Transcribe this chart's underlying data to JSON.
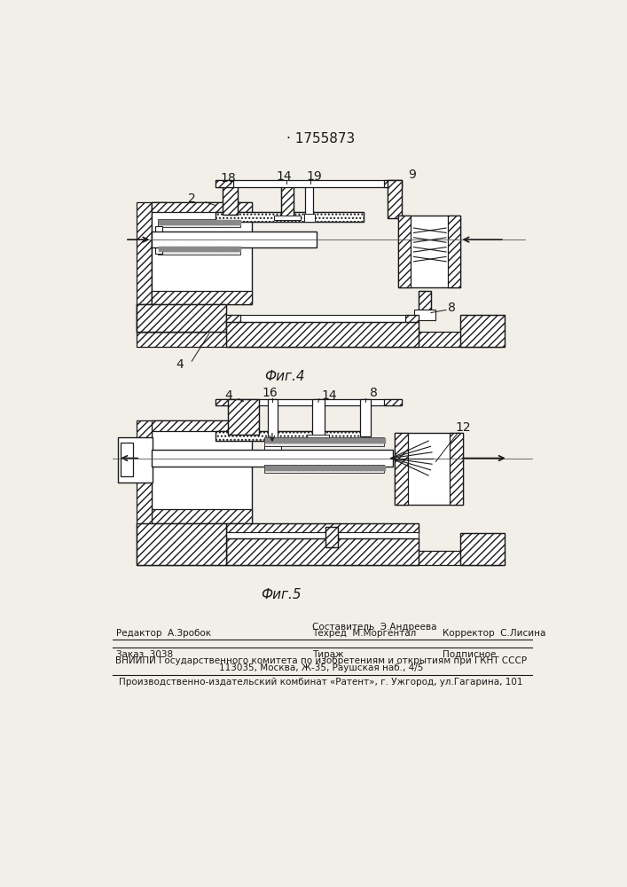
{
  "title_number": "· 1755873",
  "fig4_label": "Фиг.4",
  "fig5_label": "Фиг.5",
  "bg_color": "#f2efe9",
  "line_color": "#1a1a1a",
  "footer_line1_left": "Редактор  А.Зробок",
  "footer_line1_mid": "Составитель  Э.Андреева",
  "footer_line2_mid": "Техред  М.Моргентал",
  "footer_line1_right": "Корректор  С.Лисина",
  "footer_zakaz": "Заказ  3038",
  "footer_tirazh": "Тираж",
  "footer_podpisnoe": "Подписное",
  "footer_vniiipi": "ВНИИПИ Государственного комитета по изобретениям и открытиям при ГКНТ СССР",
  "footer_address": "113035, Москва, Ж-35, Раушская наб., 4/5",
  "footer_patent": "Производственно-издательский комбинат «Pатент», г. Ужгород, ул.Гагарина, 101"
}
